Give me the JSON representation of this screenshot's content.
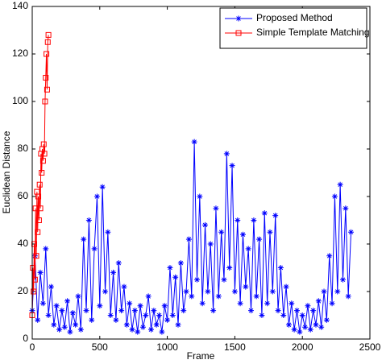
{
  "chart_data": {
    "type": "line",
    "xlabel": "Frame",
    "ylabel": "Euclidean Distance",
    "xlim": [
      0,
      2500
    ],
    "xticks": [
      0,
      500,
      1000,
      1500,
      2000,
      2500
    ],
    "ylim": [
      0,
      140
    ],
    "yticks": [
      0,
      20,
      40,
      60,
      80,
      100,
      120,
      140
    ],
    "legend": "upper right",
    "grid": false,
    "series": [
      {
        "name": "Proposed Method",
        "color": "#0000ff",
        "marker": "asterisk",
        "x": [
          0,
          20,
          40,
          60,
          80,
          100,
          120,
          140,
          160,
          180,
          200,
          220,
          240,
          260,
          280,
          300,
          320,
          340,
          360,
          380,
          400,
          420,
          440,
          460,
          480,
          500,
          520,
          540,
          560,
          580,
          600,
          620,
          640,
          660,
          680,
          700,
          720,
          740,
          760,
          780,
          800,
          820,
          840,
          860,
          880,
          900,
          920,
          940,
          960,
          980,
          1000,
          1020,
          1040,
          1060,
          1080,
          1100,
          1120,
          1140,
          1160,
          1180,
          1200,
          1220,
          1240,
          1260,
          1280,
          1300,
          1320,
          1340,
          1360,
          1380,
          1400,
          1420,
          1440,
          1460,
          1480,
          1500,
          1520,
          1540,
          1560,
          1580,
          1600,
          1620,
          1640,
          1660,
          1680,
          1700,
          1720,
          1740,
          1760,
          1780,
          1800,
          1820,
          1840,
          1860,
          1880,
          1900,
          1920,
          1940,
          1960,
          1980,
          2000,
          2020,
          2040,
          2060,
          2080,
          2100,
          2120,
          2140,
          2160,
          2180,
          2200,
          2220,
          2240,
          2260,
          2280,
          2300,
          2320,
          2340,
          2360
        ],
        "values": [
          12,
          35,
          8,
          28,
          15,
          38,
          10,
          22,
          6,
          14,
          4,
          12,
          5,
          16,
          3,
          11,
          6,
          18,
          4,
          42,
          12,
          50,
          8,
          38,
          60,
          14,
          64,
          20,
          45,
          10,
          28,
          8,
          32,
          12,
          22,
          6,
          15,
          4,
          12,
          3,
          14,
          5,
          10,
          18,
          4,
          12,
          6,
          10,
          3,
          14,
          8,
          30,
          10,
          26,
          6,
          32,
          12,
          20,
          42,
          18,
          83,
          25,
          60,
          15,
          48,
          20,
          40,
          12,
          55,
          18,
          45,
          25,
          78,
          30,
          73,
          20,
          50,
          15,
          44,
          22,
          38,
          12,
          50,
          18,
          42,
          10,
          53,
          15,
          45,
          20,
          52,
          12,
          30,
          10,
          22,
          6,
          15,
          4,
          12,
          3,
          10,
          5,
          14,
          4,
          12,
          6,
          16,
          5,
          20,
          8,
          35,
          15,
          60,
          20,
          65,
          25,
          55,
          18,
          45
        ]
      },
      {
        "name": "Simple Template Matching",
        "color": "#ff0000",
        "marker": "square",
        "x": [
          0,
          5,
          10,
          15,
          20,
          25,
          30,
          35,
          40,
          45,
          50,
          55,
          60,
          65,
          70,
          75,
          80,
          85,
          90,
          95,
          100,
          105,
          110,
          115,
          120
        ],
        "values": [
          10,
          30,
          20,
          40,
          25,
          55,
          35,
          62,
          45,
          60,
          50,
          65,
          55,
          78,
          70,
          80,
          75,
          82,
          78,
          100,
          110,
          120,
          105,
          125,
          128
        ]
      }
    ]
  }
}
